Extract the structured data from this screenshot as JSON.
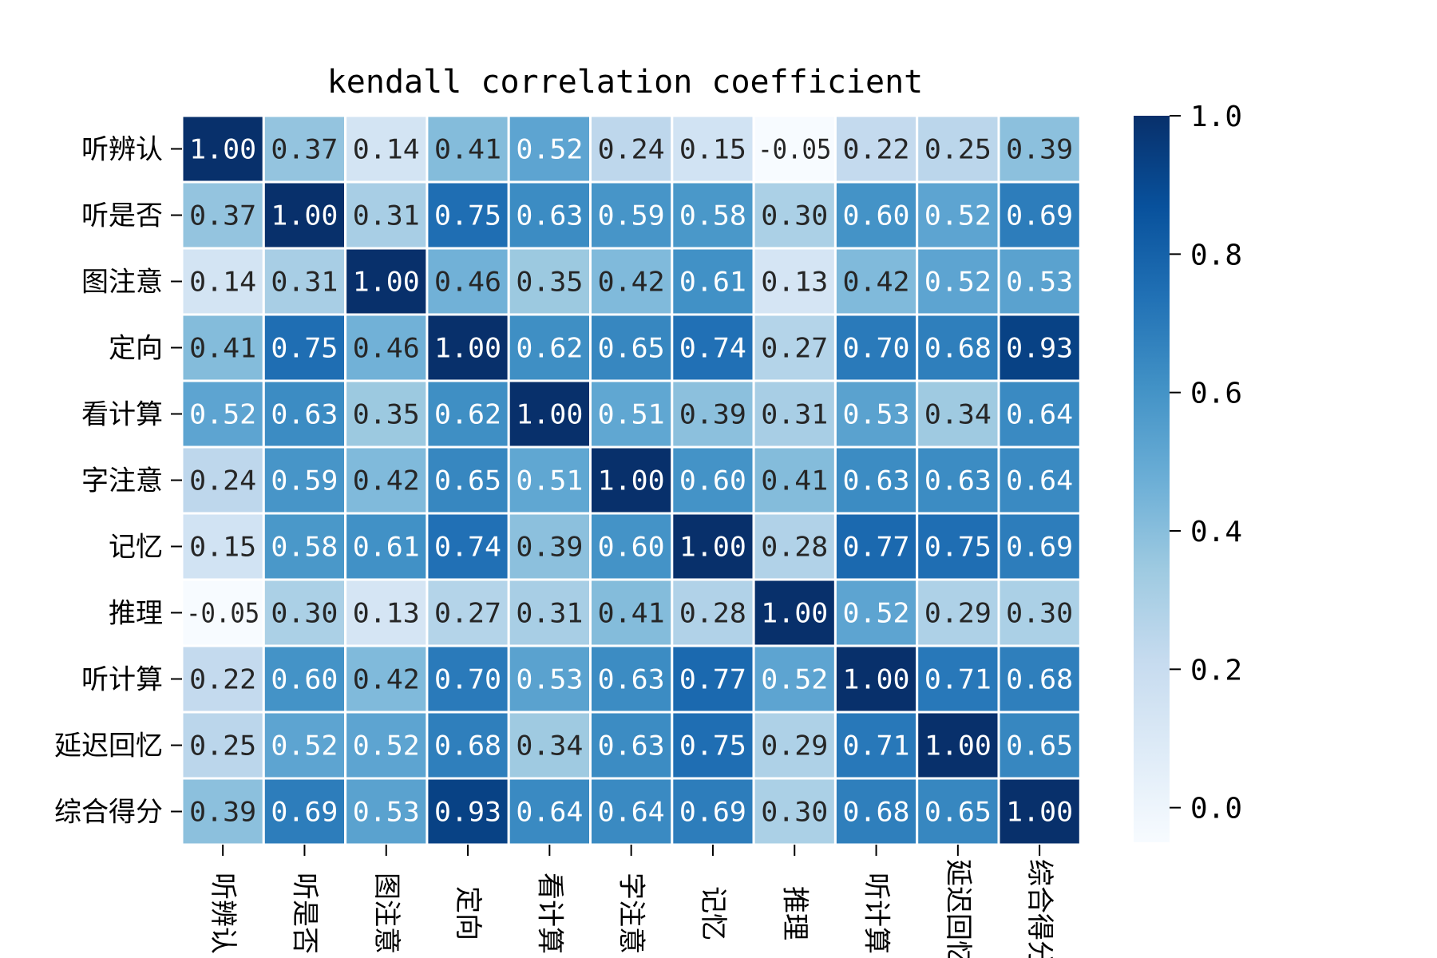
{
  "chart_data": {
    "type": "heatmap",
    "title": "kendall correlation coefficient",
    "xlabel": "",
    "ylabel": "",
    "row_labels": [
      "听辨认",
      "听是否",
      "图注意",
      "定向",
      "看计算",
      "字注意",
      "记忆",
      "推理",
      "听计算",
      "延迟回忆",
      "综合得分"
    ],
    "col_labels": [
      "听辨认",
      "听是否",
      "图注意",
      "定向",
      "看计算",
      "字注意",
      "记忆",
      "推理",
      "听计算",
      "延迟回忆",
      "综合得分"
    ],
    "matrix": [
      [
        1.0,
        0.37,
        0.14,
        0.41,
        0.52,
        0.24,
        0.15,
        -0.05,
        0.22,
        0.25,
        0.39
      ],
      [
        0.37,
        1.0,
        0.31,
        0.75,
        0.63,
        0.59,
        0.58,
        0.3,
        0.6,
        0.52,
        0.69
      ],
      [
        0.14,
        0.31,
        1.0,
        0.46,
        0.35,
        0.42,
        0.61,
        0.13,
        0.42,
        0.52,
        0.53
      ],
      [
        0.41,
        0.75,
        0.46,
        1.0,
        0.62,
        0.65,
        0.74,
        0.27,
        0.7,
        0.68,
        0.93
      ],
      [
        0.52,
        0.63,
        0.35,
        0.62,
        1.0,
        0.51,
        0.39,
        0.31,
        0.53,
        0.34,
        0.64
      ],
      [
        0.24,
        0.59,
        0.42,
        0.65,
        0.51,
        1.0,
        0.6,
        0.41,
        0.63,
        0.63,
        0.64
      ],
      [
        0.15,
        0.58,
        0.61,
        0.74,
        0.39,
        0.6,
        1.0,
        0.28,
        0.77,
        0.75,
        0.69
      ],
      [
        -0.05,
        0.3,
        0.13,
        0.27,
        0.31,
        0.41,
        0.28,
        1.0,
        0.52,
        0.29,
        0.3
      ],
      [
        0.22,
        0.6,
        0.42,
        0.7,
        0.53,
        0.63,
        0.77,
        0.52,
        1.0,
        0.71,
        0.68
      ],
      [
        0.25,
        0.52,
        0.52,
        0.68,
        0.34,
        0.63,
        0.75,
        0.29,
        0.71,
        1.0,
        0.65
      ],
      [
        0.39,
        0.69,
        0.53,
        0.93,
        0.64,
        0.64,
        0.69,
        0.3,
        0.68,
        0.65,
        1.0
      ]
    ],
    "value_format": "0.00",
    "colormap": "Blues",
    "vmin": -0.05,
    "vmax": 1.0,
    "colorbar_ticks": [
      0.0,
      0.2,
      0.4,
      0.6,
      0.8,
      1.0
    ],
    "colorbar_tick_labels": [
      "0.0",
      "0.2",
      "0.4",
      "0.6",
      "0.8",
      "1.0"
    ],
    "colorbar_position": "right",
    "x_tick_rotation": "vertical",
    "cell_separator_color": "#ffffff"
  }
}
